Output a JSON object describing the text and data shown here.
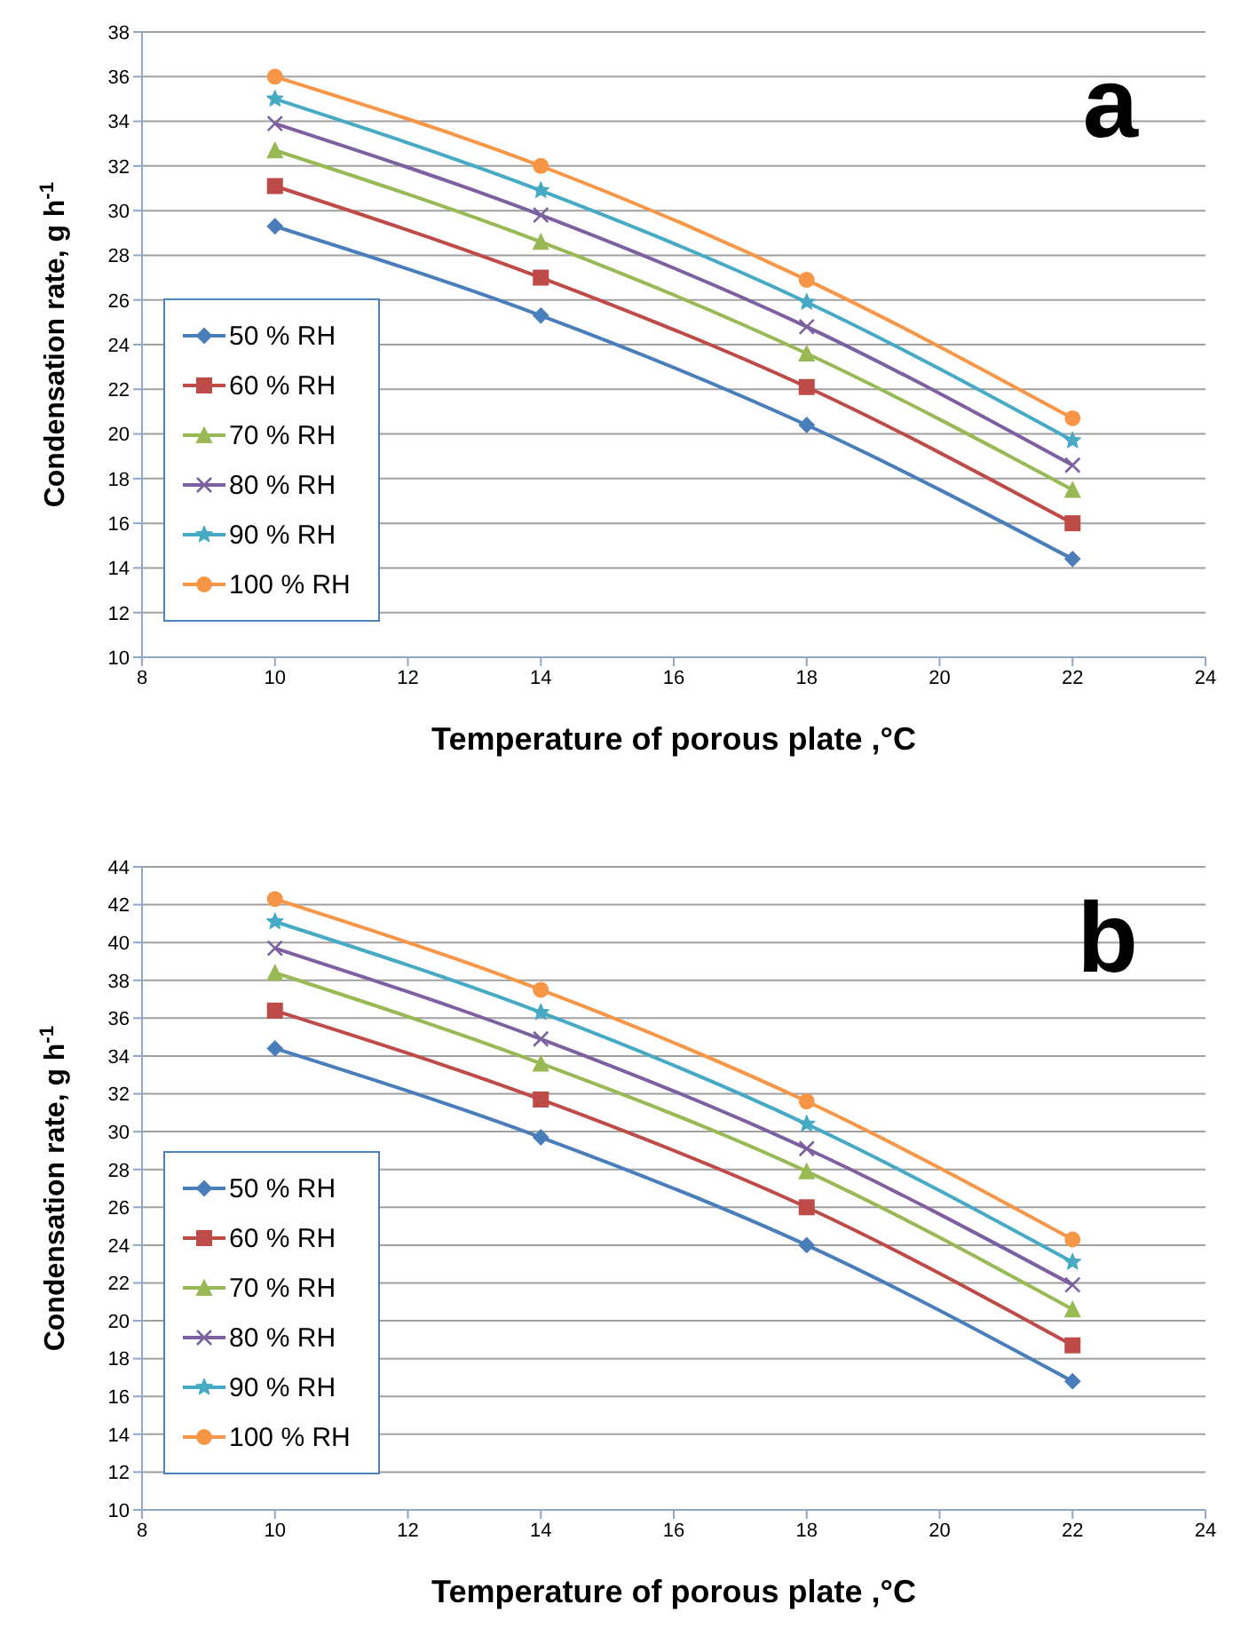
{
  "chart_data": [
    {
      "type": "line",
      "xlabel": "Temperature of porous plate ,°C",
      "ylabel": "Condensation rate, g h$^{-1}$",
      "annotations": [
        "a"
      ],
      "x": [
        10,
        14,
        18,
        22
      ],
      "xlim": [
        8,
        24
      ],
      "xticks": [
        8,
        10,
        12,
        14,
        16,
        18,
        20,
        22,
        24
      ],
      "ylim": [
        10,
        38
      ],
      "yticks": [
        10,
        12,
        14,
        16,
        18,
        20,
        22,
        24,
        26,
        28,
        30,
        32,
        34,
        36,
        38
      ],
      "grid": "y",
      "legend": "bottom left",
      "line_style": "solid",
      "series": [
        {
          "name": "50 % RH",
          "color": "#4a7ebb",
          "marker": "diamond",
          "values": [
            29.3,
            25.3,
            20.4,
            14.4
          ]
        },
        {
          "name": "60 % RH",
          "color": "#be4b48",
          "marker": "square",
          "values": [
            31.1,
            27.0,
            22.1,
            16.0
          ]
        },
        {
          "name": "70 % RH",
          "color": "#98b954",
          "marker": "triangle",
          "values": [
            32.7,
            28.6,
            23.6,
            17.5
          ]
        },
        {
          "name": "80 % RH",
          "color": "#7d60a0",
          "marker": "cross",
          "values": [
            33.9,
            29.8,
            24.8,
            18.6
          ]
        },
        {
          "name": "90 % RH",
          "color": "#46aac5",
          "marker": "star",
          "values": [
            35.0,
            30.9,
            25.9,
            19.7
          ]
        },
        {
          "name": "100 % RH",
          "color": "#f79646",
          "marker": "circle",
          "values": [
            36.0,
            32.0,
            26.9,
            20.7
          ]
        }
      ]
    },
    {
      "type": "line",
      "xlabel": "Temperature of porous plate ,°C",
      "ylabel": "Condensation rate, g h$^{-1}$",
      "annotations": [
        "b"
      ],
      "x": [
        10,
        14,
        18,
        22
      ],
      "xlim": [
        8,
        24
      ],
      "xticks": [
        8,
        10,
        12,
        14,
        16,
        18,
        20,
        22,
        24
      ],
      "ylim": [
        10,
        44
      ],
      "yticks": [
        10,
        12,
        14,
        16,
        18,
        20,
        22,
        24,
        26,
        28,
        30,
        32,
        34,
        36,
        38,
        40,
        42,
        44
      ],
      "grid": "y",
      "legend": "bottom left",
      "line_style": "solid",
      "series": [
        {
          "name": "50 % RH",
          "color": "#4a7ebb",
          "marker": "diamond",
          "values": [
            34.4,
            29.7,
            24.0,
            16.8
          ]
        },
        {
          "name": "60 % RH",
          "color": "#be4b48",
          "marker": "square",
          "values": [
            36.4,
            31.7,
            26.0,
            18.7
          ]
        },
        {
          "name": "70 % RH",
          "color": "#98b954",
          "marker": "triangle",
          "values": [
            38.4,
            33.6,
            27.9,
            20.6
          ]
        },
        {
          "name": "80 % RH",
          "color": "#7d60a0",
          "marker": "cross",
          "values": [
            39.7,
            34.9,
            29.1,
            21.9
          ]
        },
        {
          "name": "90 % RH",
          "color": "#46aac5",
          "marker": "star",
          "values": [
            41.1,
            36.3,
            30.4,
            23.1
          ]
        },
        {
          "name": "100 % RH",
          "color": "#f79646",
          "marker": "circle",
          "values": [
            42.3,
            37.5,
            31.6,
            24.3
          ]
        }
      ]
    }
  ]
}
